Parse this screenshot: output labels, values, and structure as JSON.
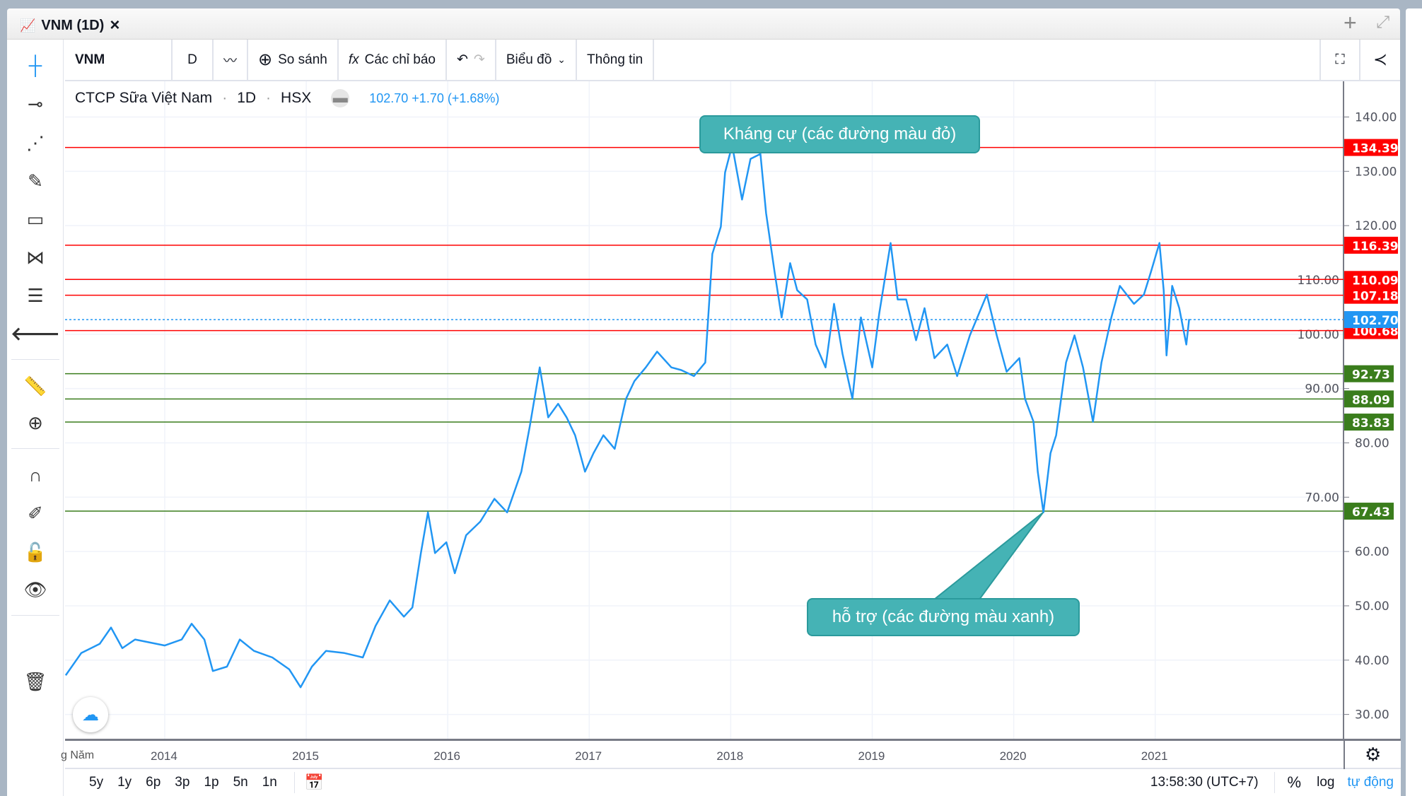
{
  "tab": {
    "title": "VNM (1D)",
    "close": "×",
    "chart_icon": "chart-icon",
    "add": "+",
    "expand": "expand-icon"
  },
  "toolbar": {
    "symbol": "VNM",
    "interval": "D",
    "compare": "So sánh",
    "indicators": "Các chỉ báo",
    "chart": "Biểu đồ",
    "info": "Thông tin"
  },
  "legend": {
    "name": "CTCP Sữa Việt Nam",
    "interval": "1D",
    "exchange": "HSX",
    "quote": "102.70 +1.70 (+1.68%)"
  },
  "callouts": {
    "resistance": "Kháng cự (các đường màu đỏ)",
    "support": "hỗ trợ (các đường màu xanh)"
  },
  "bottom": {
    "periods": [
      "5y",
      "1y",
      "6p",
      "3p",
      "1p",
      "5n",
      "1n"
    ],
    "time": "13:58:30 (UTC+7)",
    "percent": "%",
    "log": "log",
    "auto": "tự động"
  },
  "colors": {
    "line": "#2196f3",
    "resistance": "#ff0000",
    "support": "#3a7d1c",
    "last": "#2196f3",
    "callout": "#45b3b5"
  },
  "chart_data": {
    "type": "line",
    "symbol": "VNM",
    "interval": "1D",
    "xlabel_prefix": "g Năm",
    "x_ticks": [
      "2014",
      "2015",
      "2016",
      "2017",
      "2018",
      "2019",
      "2020",
      "2021"
    ],
    "y_ticks": [
      "30.00",
      "40.00",
      "50.00",
      "60.00",
      "70.00",
      "80.00",
      "90.00",
      "100.00",
      "110.00",
      "120.00",
      "130.00",
      "140.00"
    ],
    "ylim": [
      22,
      148
    ],
    "xlim": [
      2013.3,
      2021.35
    ],
    "grid": true,
    "last_price": "102.70",
    "resistance_levels": [
      "134.39",
      "116.39",
      "110.09",
      "107.18",
      "100.68"
    ],
    "support_levels": [
      "92.73",
      "88.09",
      "83.83",
      "67.43"
    ],
    "points": [
      [
        2013.3,
        37.2
      ],
      [
        2013.41,
        41.3
      ],
      [
        2013.54,
        43.0
      ],
      [
        2013.62,
        46.0
      ],
      [
        2013.7,
        42.2
      ],
      [
        2013.79,
        43.8
      ],
      [
        2014.0,
        42.7
      ],
      [
        2014.12,
        43.8
      ],
      [
        2014.19,
        46.7
      ],
      [
        2014.28,
        43.8
      ],
      [
        2014.34,
        38.0
      ],
      [
        2014.44,
        38.8
      ],
      [
        2014.53,
        43.8
      ],
      [
        2014.63,
        41.7
      ],
      [
        2014.76,
        40.5
      ],
      [
        2014.88,
        38.3
      ],
      [
        2014.96,
        35.0
      ],
      [
        2015.04,
        38.8
      ],
      [
        2015.14,
        41.7
      ],
      [
        2015.27,
        41.3
      ],
      [
        2015.4,
        40.5
      ],
      [
        2015.49,
        46.3
      ],
      [
        2015.59,
        51.0
      ],
      [
        2015.69,
        48.0
      ],
      [
        2015.75,
        49.7
      ],
      [
        2015.81,
        59.7
      ],
      [
        2015.86,
        67.2
      ],
      [
        2015.91,
        59.7
      ],
      [
        2015.99,
        61.7
      ],
      [
        2016.05,
        56.0
      ],
      [
        2016.13,
        63.0
      ],
      [
        2016.23,
        65.5
      ],
      [
        2016.33,
        69.7
      ],
      [
        2016.42,
        67.2
      ],
      [
        2016.52,
        74.7
      ],
      [
        2016.58,
        83.1
      ],
      [
        2016.65,
        93.9
      ],
      [
        2016.71,
        84.7
      ],
      [
        2016.78,
        87.2
      ],
      [
        2016.84,
        84.7
      ],
      [
        2016.9,
        81.4
      ],
      [
        2016.97,
        74.7
      ],
      [
        2017.03,
        78.1
      ],
      [
        2017.1,
        81.4
      ],
      [
        2017.18,
        78.9
      ],
      [
        2017.26,
        88.1
      ],
      [
        2017.32,
        91.4
      ],
      [
        2017.4,
        93.9
      ],
      [
        2017.48,
        96.8
      ],
      [
        2017.58,
        93.9
      ],
      [
        2017.65,
        93.4
      ],
      [
        2017.74,
        92.3
      ],
      [
        2017.82,
        94.8
      ],
      [
        2017.87,
        114.8
      ],
      [
        2017.93,
        119.8
      ],
      [
        2017.96,
        129.8
      ],
      [
        2018.01,
        134.8
      ],
      [
        2018.08,
        124.8
      ],
      [
        2018.14,
        132.3
      ],
      [
        2018.21,
        133.2
      ],
      [
        2018.25,
        122.3
      ],
      [
        2018.31,
        111.5
      ],
      [
        2018.36,
        103.1
      ],
      [
        2018.42,
        113.1
      ],
      [
        2018.47,
        108.1
      ],
      [
        2018.54,
        106.4
      ],
      [
        2018.6,
        98.1
      ],
      [
        2018.67,
        93.9
      ],
      [
        2018.73,
        105.6
      ],
      [
        2018.79,
        96.4
      ],
      [
        2018.86,
        88.1
      ],
      [
        2018.92,
        103.1
      ],
      [
        2019.0,
        93.9
      ],
      [
        2019.05,
        103.9
      ],
      [
        2019.13,
        116.8
      ],
      [
        2019.18,
        106.4
      ],
      [
        2019.24,
        106.4
      ],
      [
        2019.31,
        98.9
      ],
      [
        2019.37,
        104.8
      ],
      [
        2019.44,
        95.6
      ],
      [
        2019.53,
        98.1
      ],
      [
        2019.6,
        92.3
      ],
      [
        2019.69,
        99.8
      ],
      [
        2019.81,
        107.3
      ],
      [
        2019.88,
        99.8
      ],
      [
        2019.95,
        93.1
      ],
      [
        2020.04,
        95.6
      ],
      [
        2020.08,
        88.1
      ],
      [
        2020.14,
        83.9
      ],
      [
        2020.17,
        74.7
      ],
      [
        2020.21,
        67.2
      ],
      [
        2020.26,
        78.1
      ],
      [
        2020.3,
        81.4
      ],
      [
        2020.37,
        94.8
      ],
      [
        2020.43,
        99.8
      ],
      [
        2020.49,
        93.9
      ],
      [
        2020.56,
        83.9
      ],
      [
        2020.62,
        94.8
      ],
      [
        2020.69,
        103.1
      ],
      [
        2020.75,
        108.9
      ],
      [
        2020.85,
        105.6
      ],
      [
        2020.92,
        107.3
      ],
      [
        2020.97,
        111.5
      ],
      [
        2021.03,
        116.8
      ],
      [
        2021.06,
        108.1
      ],
      [
        2021.08,
        96.1
      ],
      [
        2021.12,
        108.9
      ],
      [
        2021.17,
        104.8
      ],
      [
        2021.22,
        98.1
      ],
      [
        2021.24,
        102.8
      ]
    ]
  }
}
